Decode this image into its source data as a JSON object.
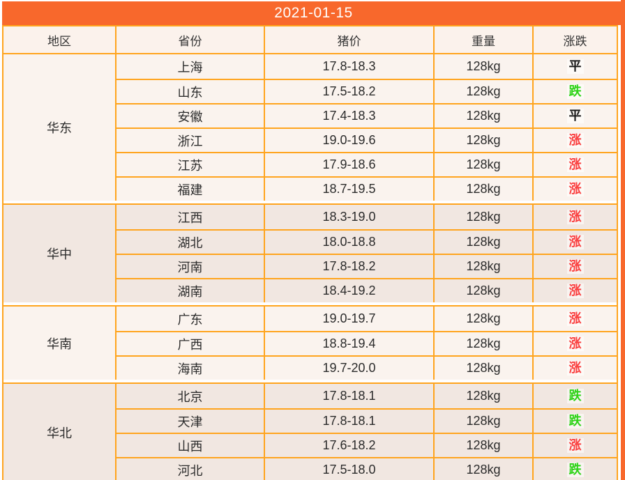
{
  "banner": {
    "date": "2021-01-15"
  },
  "columns": {
    "region": "地区",
    "province": "省份",
    "price": "猪价",
    "weight": "重量",
    "trend": "涨跌"
  },
  "colors": {
    "banner_bg": "#f8682c",
    "grid_line": "#ffa41d",
    "group_light_bg": "#faf3ee",
    "group_dark_bg": "#f1e7e1",
    "trend_flat": "#161616",
    "trend_up": "#fa3e3e",
    "trend_down": "#2ed317"
  },
  "regions": [
    {
      "name": "华东",
      "rows": [
        {
          "province": "上海",
          "price": "17.8-18.3",
          "weight": "128kg",
          "trend": "平",
          "trend_color": "#161616"
        },
        {
          "province": "山东",
          "price": "17.5-18.2",
          "weight": "128kg",
          "trend": "跌",
          "trend_color": "#2ed317"
        },
        {
          "province": "安徽",
          "price": "17.4-18.3",
          "weight": "128kg",
          "trend": "平",
          "trend_color": "#161616"
        },
        {
          "province": "浙江",
          "price": "19.0-19.6",
          "weight": "128kg",
          "trend": "涨",
          "trend_color": "#fa3e3e"
        },
        {
          "province": "江苏",
          "price": "17.9-18.6",
          "weight": "128kg",
          "trend": "涨",
          "trend_color": "#fa3e3e"
        },
        {
          "province": "福建",
          "price": "18.7-19.5",
          "weight": "128kg",
          "trend": "涨",
          "trend_color": "#fa3e3e"
        }
      ]
    },
    {
      "name": "华中",
      "rows": [
        {
          "province": "江西",
          "price": "18.3-19.0",
          "weight": "128kg",
          "trend": "涨",
          "trend_color": "#fa3e3e"
        },
        {
          "province": "湖北",
          "price": "18.0-18.8",
          "weight": "128kg",
          "trend": "涨",
          "trend_color": "#fa3e3e"
        },
        {
          "province": "河南",
          "price": "17.8-18.2",
          "weight": "128kg",
          "trend": "涨",
          "trend_color": "#fa3e3e"
        },
        {
          "province": "湖南",
          "price": "18.4-19.2",
          "weight": "128kg",
          "trend": "涨",
          "trend_color": "#fa3e3e"
        }
      ]
    },
    {
      "name": "华南",
      "rows": [
        {
          "province": "广东",
          "price": "19.0-19.7",
          "weight": "128kg",
          "trend": "涨",
          "trend_color": "#fa3e3e"
        },
        {
          "province": "广西",
          "price": "18.8-19.4",
          "weight": "128kg",
          "trend": "涨",
          "trend_color": "#fa3e3e"
        },
        {
          "province": "海南",
          "price": "19.7-20.0",
          "weight": "128kg",
          "trend": "涨",
          "trend_color": "#fa3e3e"
        }
      ]
    },
    {
      "name": "华北",
      "rows": [
        {
          "province": "北京",
          "price": "17.8-18.1",
          "weight": "128kg",
          "trend": "跌",
          "trend_color": "#2ed317"
        },
        {
          "province": "天津",
          "price": "17.8-18.1",
          "weight": "128kg",
          "trend": "跌",
          "trend_color": "#2ed317"
        },
        {
          "province": "山西",
          "price": "17.6-18.2",
          "weight": "128kg",
          "trend": "涨",
          "trend_color": "#fa3e3e"
        },
        {
          "province": "河北",
          "price": "17.5-18.0",
          "weight": "128kg",
          "trend": "跌",
          "trend_color": "#2ed317"
        }
      ]
    }
  ]
}
